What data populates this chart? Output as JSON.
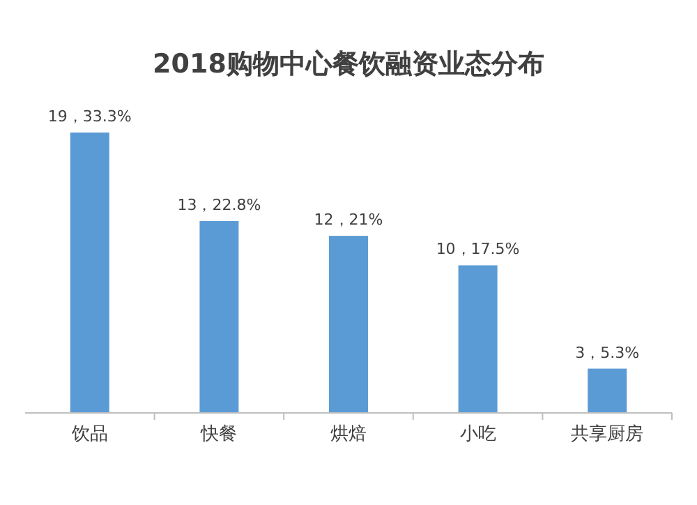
{
  "chart_data": {
    "type": "bar",
    "title": "2018购物中心餐饮融资业态分布",
    "categories": [
      "饮品",
      "快餐",
      "烘焙",
      "小吃",
      "共享厨房"
    ],
    "values": [
      19,
      13,
      12,
      10,
      3
    ],
    "value_labels": [
      "19，33.3%",
      "13，22.8%",
      "12，21%",
      "10，17.5%",
      "3，5.3%"
    ],
    "color": "#5b9bd5"
  }
}
